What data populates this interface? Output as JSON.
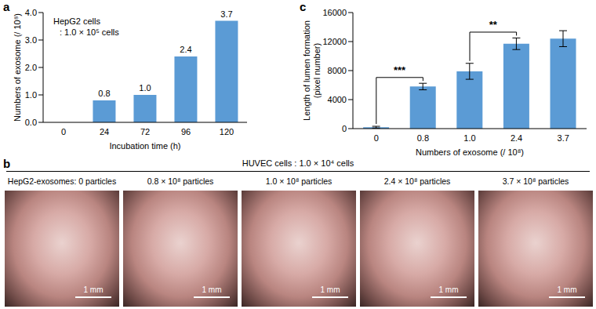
{
  "chart_data": [
    {
      "panel": "a",
      "type": "bar",
      "categories": [
        "0",
        "24",
        "72",
        "96",
        "120"
      ],
      "values": [
        0,
        0.8,
        1.0,
        2.4,
        3.7
      ],
      "value_labels": [
        null,
        "0.8",
        "1.0",
        "2.4",
        "3.7"
      ],
      "data_labels": true,
      "color": "#5b9bd5",
      "x_label": "Incubation time (h)",
      "y_label": "Numbers of exosome (/ 10⁸)",
      "ylim": [
        0,
        4
      ],
      "yticks": [
        {
          "value": 0,
          "label": "0.0"
        },
        {
          "value": 1,
          "label": "1.0"
        },
        {
          "value": 2,
          "label": "2.0"
        },
        {
          "value": 3,
          "label": "3.0"
        },
        {
          "value": 4,
          "label": "4.0"
        }
      ],
      "annotations": [
        "HepG2 cells",
        ": 1.0 × 10⁵ cells"
      ]
    },
    {
      "panel": "c",
      "type": "bar",
      "categories": [
        "0",
        "0.8",
        "1.0",
        "2.4",
        "3.7"
      ],
      "values": [
        200,
        5800,
        7900,
        11700,
        12400
      ],
      "errors": [
        120,
        450,
        1100,
        800,
        1100
      ],
      "color": "#5b9bd5",
      "x_label": "Numbers of exosome (/ 10⁸)",
      "y_label": "Length of lumen formation\n(pixel number)",
      "ylim": [
        0,
        16000
      ],
      "yticks": [
        0,
        4000,
        8000,
        12000,
        16000
      ],
      "annotations": [
        {
          "text": "***",
          "from": "0",
          "to": "0.8"
        },
        {
          "text": "**",
          "from": "1.0",
          "to": "2.4"
        }
      ]
    }
  ],
  "image_panel": {
    "panel": "b",
    "title": "HUVEC cells : 1.0 × 10⁴ cells",
    "images": [
      {
        "label": "HepG2-exosomes: 0 particles",
        "scale_bar": "1 mm"
      },
      {
        "label": "0.8 × 10⁸ particles",
        "scale_bar": "1 mm"
      },
      {
        "label": "1.0 × 10⁸ particles",
        "scale_bar": "1 mm"
      },
      {
        "label": "2.4 × 10⁸ particles",
        "scale_bar": "1 mm"
      },
      {
        "label": "3.7 × 10⁸ particles",
        "scale_bar": "1 mm"
      }
    ]
  }
}
